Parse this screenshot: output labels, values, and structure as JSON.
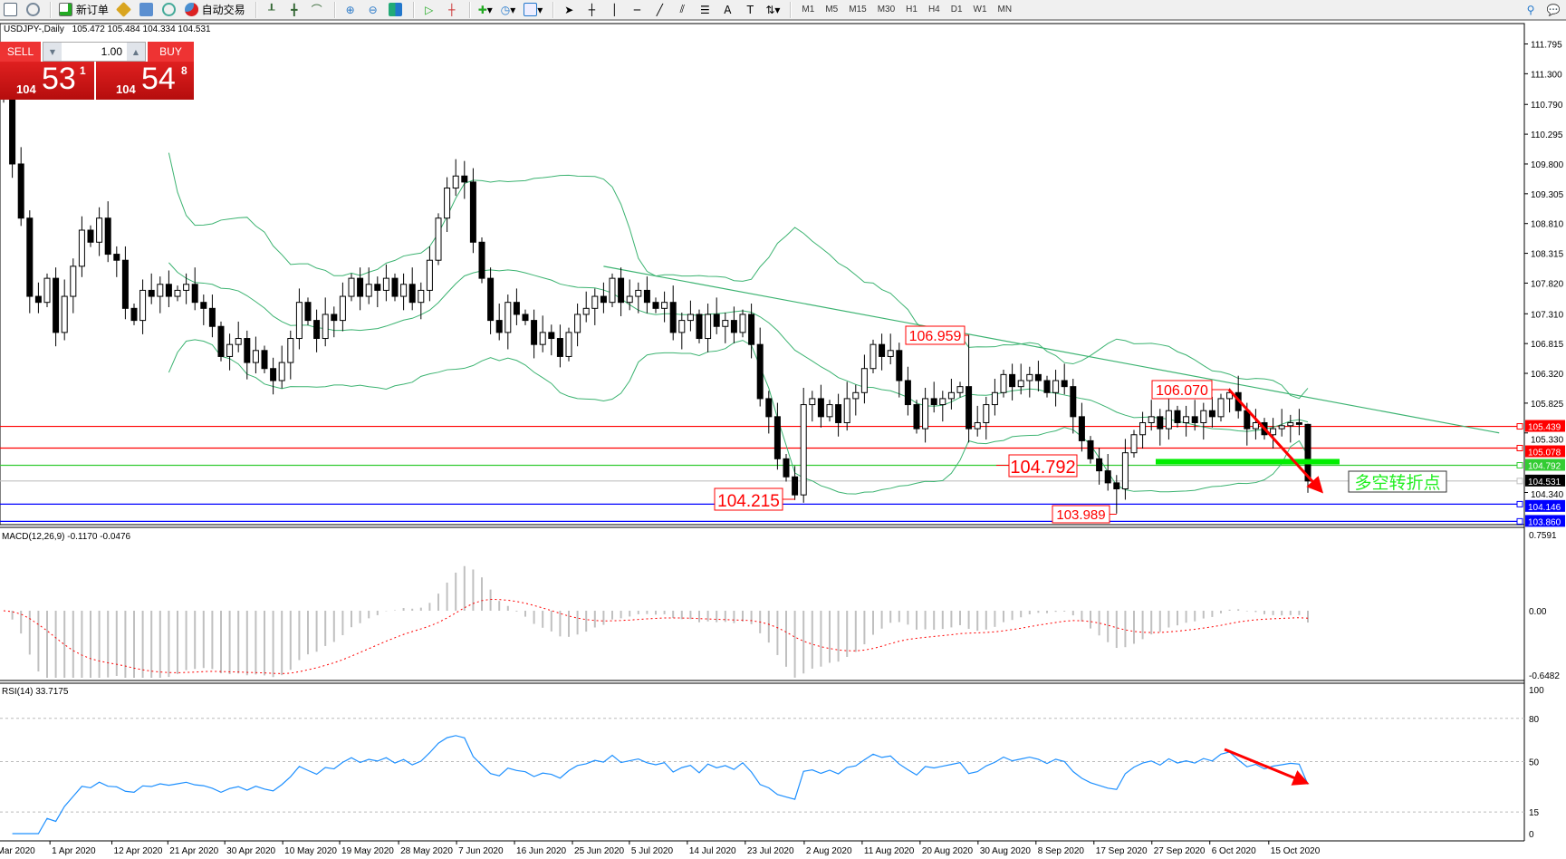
{
  "toolbar": {
    "new_order_label": "新订单",
    "auto_trading_label": "自动交易",
    "timeframes": [
      "M1",
      "M5",
      "M15",
      "M30",
      "H1",
      "H4",
      "D1",
      "W1",
      "MN"
    ]
  },
  "chart_info": {
    "symbol": "USDJPY-,Daily",
    "ohlc_text": "105.472 105.484 104.334 104.531"
  },
  "one_click": {
    "sell_label": "SELL",
    "buy_label": "BUY",
    "lot": "1.00",
    "sell_big": "104",
    "sell_mid": "53",
    "sell_pip": "1",
    "buy_big": "104",
    "buy_mid": "54",
    "buy_pip": "8"
  },
  "price_axis": [
    "111.795",
    "111.300",
    "110.790",
    "110.295",
    "109.800",
    "109.305",
    "108.810",
    "108.315",
    "107.820",
    "107.310",
    "106.815",
    "106.320",
    "105.825",
    "105.330",
    "104.340"
  ],
  "price_lines": [
    {
      "price": "105.439",
      "color": "#ff0000"
    },
    {
      "price": "105.078",
      "color": "#ff0000"
    },
    {
      "price": "104.792",
      "color": "#33cc33"
    },
    {
      "price": "104.531",
      "color": "#000000",
      "line": "#c0c0c0"
    },
    {
      "price": "104.146",
      "color": "#0000ff"
    },
    {
      "price": "103.860",
      "color": "#0000ff"
    }
  ],
  "chart_data": {
    "type": "candlestick",
    "last_bar": {
      "open": 105.472,
      "high": 105.484,
      "low": 104.334,
      "close": 104.531
    },
    "close": [
      110.9,
      109.8,
      108.9,
      107.6,
      107.5,
      107.9,
      107.0,
      107.6,
      108.1,
      108.7,
      108.5,
      108.9,
      108.3,
      108.2,
      107.4,
      107.2,
      107.7,
      107.6,
      107.8,
      107.6,
      107.7,
      107.8,
      107.5,
      107.4,
      107.1,
      106.6,
      106.8,
      106.9,
      106.5,
      106.7,
      106.4,
      106.2,
      106.5,
      106.9,
      107.5,
      107.2,
      106.9,
      107.3,
      107.2,
      107.6,
      107.9,
      107.6,
      107.8,
      107.7,
      107.9,
      107.6,
      107.8,
      107.5,
      107.7,
      108.2,
      108.9,
      109.4,
      109.6,
      109.5,
      108.5,
      107.9,
      107.2,
      107.0,
      107.5,
      107.3,
      107.2,
      106.8,
      107.0,
      106.9,
      106.6,
      107.0,
      107.3,
      107.4,
      107.6,
      107.5,
      107.9,
      107.5,
      107.6,
      107.7,
      107.5,
      107.4,
      107.5,
      107.0,
      107.2,
      107.3,
      106.9,
      107.3,
      107.1,
      107.2,
      107.0,
      107.3,
      106.8,
      105.9,
      105.6,
      104.9,
      104.6,
      104.3,
      105.8,
      105.9,
      105.6,
      105.8,
      105.5,
      105.9,
      106.0,
      106.4,
      106.8,
      106.6,
      106.7,
      106.2,
      105.8,
      105.4,
      105.9,
      105.8,
      105.9,
      106.0,
      106.1,
      105.4,
      105.5,
      105.8,
      106.0,
      106.3,
      106.1,
      106.2,
      106.3,
      106.2,
      106.0,
      106.2,
      106.1,
      105.6,
      105.2,
      104.9,
      104.7,
      104.5,
      104.4,
      105.0,
      105.3,
      105.5,
      105.6,
      105.4,
      105.7,
      105.5,
      105.6,
      105.5,
      105.7,
      105.6,
      105.9,
      106.0,
      105.7,
      105.4,
      105.5,
      105.3,
      105.4,
      105.45,
      105.5,
      105.472,
      104.531
    ],
    "annotated_extremes": [
      {
        "bar": 53,
        "high": 109.85
      },
      {
        "bar": 91,
        "low": 104.215,
        "label": "104.215"
      },
      {
        "bar": 111,
        "high": 106.959,
        "label": "106.959"
      },
      {
        "bar": 128,
        "low": 103.989,
        "label": "103.989"
      },
      {
        "bar": 141,
        "high": 106.07,
        "label": "106.070"
      },
      {
        "bar": 150,
        "high": 105.484,
        "low": 104.334
      }
    ],
    "level_label": "104.792",
    "note_text": "多空转折点",
    "trendline": {
      "from_bar": 69,
      "from_price": 108.1,
      "to_bar": 172,
      "to_price": 105.33
    },
    "dates": [
      "Mar 2020",
      "1 Apr 2020",
      "12 Apr 2020",
      "21 Apr 2020",
      "30 Apr 2020",
      "10 May 2020",
      "19 May 2020",
      "28 May 2020",
      "7 Jun 2020",
      "16 Jun 2020",
      "25 Jun 2020",
      "5 Jul 2020",
      "14 Jul 2020",
      "23 Jul 2020",
      "2 Aug 2020",
      "11 Aug 2020",
      "20 Aug 2020",
      "30 Aug 2020",
      "8 Sep 2020",
      "17 Sep 2020",
      "27 Sep 2020",
      "6 Oct 2020",
      "15 Oct 2020"
    ],
    "colors": {
      "bollinger": "#3cb371",
      "trend": "#3cb371",
      "arrow": "#ff0000",
      "level_bar": "#00ee00",
      "rsi": "#1e90ff",
      "macd_signal": "#ff0000",
      "macd_hist": "#c0c0c0"
    }
  },
  "macd": {
    "label": "MACD(12,26,9) -0.1170 -0.0476",
    "axis": [
      "0.7591",
      "0.00",
      "-0.6482"
    ]
  },
  "rsi": {
    "label": "RSI(14) 33.7175",
    "axis": [
      "100",
      "80",
      "50",
      "15",
      "0"
    ]
  }
}
